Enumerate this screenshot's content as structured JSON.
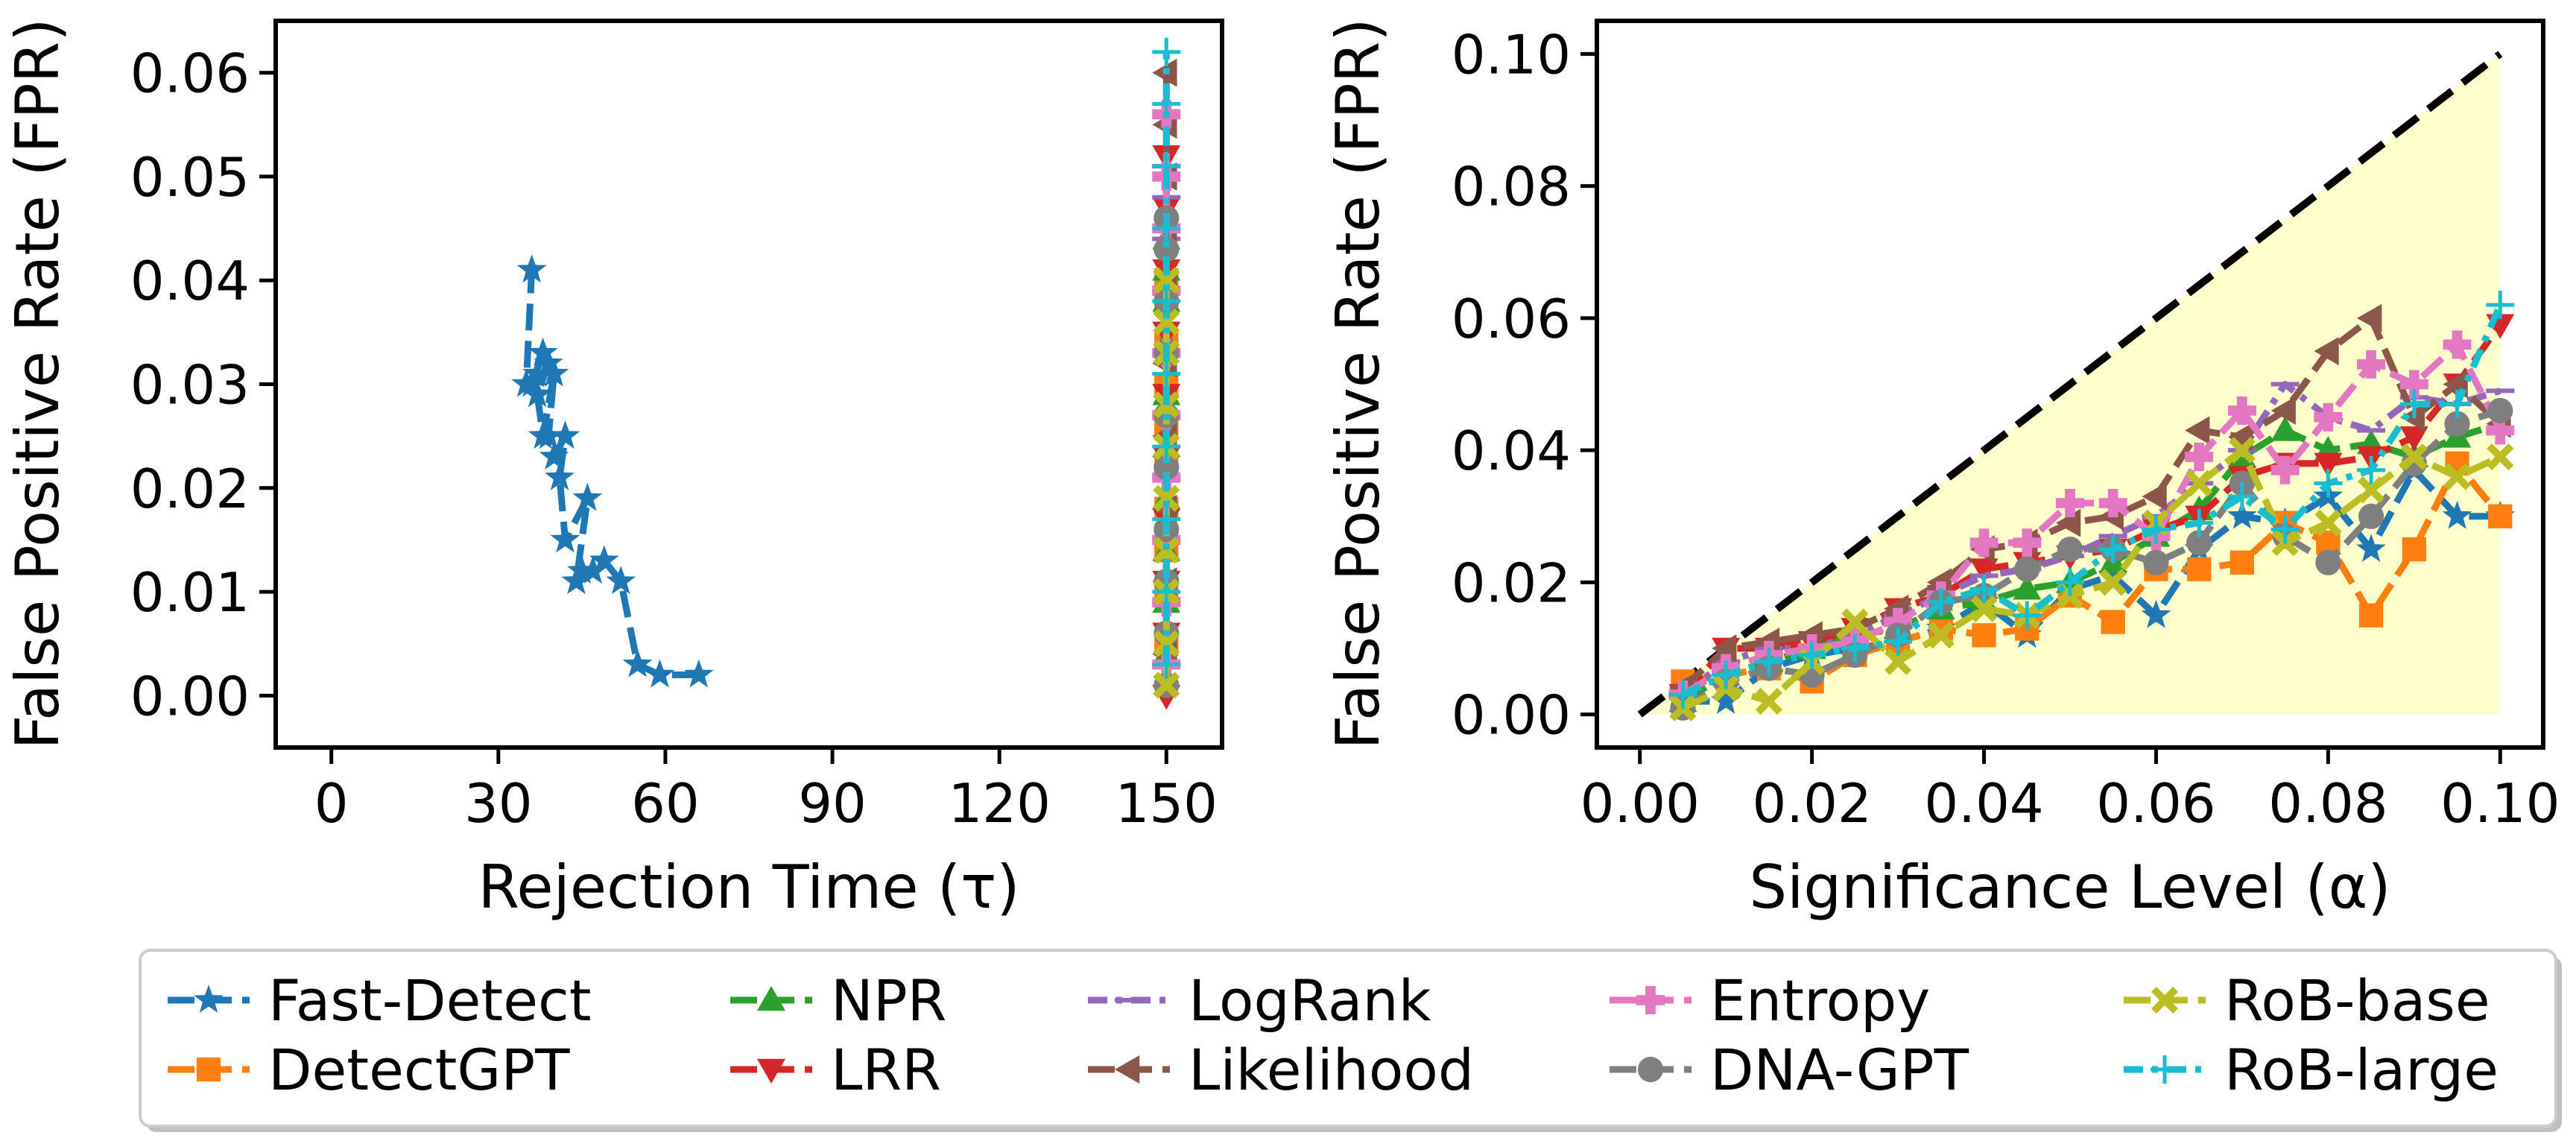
{
  "chart_data": [
    {
      "type": "line",
      "panel": "left",
      "xlabel": "Rejection Time (τ)",
      "ylabel": "False Positive Rate (FPR)",
      "xlim": [
        -10,
        160
      ],
      "ylim": [
        -0.005,
        0.065
      ],
      "xticks": [
        0,
        30,
        60,
        90,
        120,
        150
      ],
      "yticks": [
        0.0,
        0.01,
        0.02,
        0.03,
        0.04,
        0.05,
        0.06
      ],
      "xtick_labels": [
        "0",
        "30",
        "60",
        "90",
        "120",
        "150"
      ],
      "ytick_labels": [
        "0.00",
        "0.01",
        "0.02",
        "0.03",
        "0.04",
        "0.05",
        "0.06"
      ],
      "series": [
        {
          "name": "Fast-Detect",
          "color": "#1f77b4",
          "marker": "star",
          "x": [
            66,
            59,
            55,
            52,
            49,
            47,
            45,
            44,
            46,
            42,
            41,
            42,
            40,
            39,
            40,
            38,
            37,
            39,
            38,
            36,
            37,
            35,
            36
          ],
          "y": [
            0.002,
            0.002,
            0.003,
            0.011,
            0.013,
            0.012,
            0.012,
            0.011,
            0.019,
            0.015,
            0.021,
            0.025,
            0.023,
            0.025,
            0.031,
            0.025,
            0.029,
            0.032,
            0.033,
            0.03,
            0.031,
            0.03,
            0.041
          ]
        },
        {
          "name": "DetectGPT",
          "color": "#ff7f0e",
          "marker": "square",
          "x": [
            150,
            150,
            150,
            150,
            150,
            150,
            150,
            150,
            150,
            150
          ],
          "y": [
            0.005,
            0.01,
            0.014,
            0.018,
            0.022,
            0.026,
            0.03,
            0.034,
            0.038,
            0.04
          ]
        },
        {
          "name": "NPR",
          "color": "#2ca02c",
          "marker": "triangle-up",
          "x": [
            150,
            150,
            150,
            150,
            150,
            150,
            150,
            150,
            150,
            150
          ],
          "y": [
            0.004,
            0.009,
            0.014,
            0.019,
            0.024,
            0.029,
            0.034,
            0.038,
            0.041,
            0.044
          ]
        },
        {
          "name": "LRR",
          "color": "#d62728",
          "marker": "triangle-down",
          "x": [
            150,
            150,
            150,
            150,
            150,
            150,
            150,
            150,
            150,
            150
          ],
          "y": [
            0.0,
            0.006,
            0.011,
            0.017,
            0.023,
            0.029,
            0.035,
            0.041,
            0.047,
            0.052
          ]
        },
        {
          "name": "LogRank",
          "color": "#9467bd",
          "marker": "hline",
          "x": [
            150,
            150,
            150,
            150,
            150,
            150,
            150,
            150,
            150,
            150
          ],
          "y": [
            0.003,
            0.009,
            0.015,
            0.021,
            0.027,
            0.033,
            0.039,
            0.044,
            0.048,
            0.051
          ]
        },
        {
          "name": "Likelihood",
          "color": "#8c564b",
          "marker": "triangle-left",
          "x": [
            150,
            150,
            150,
            150,
            150,
            150,
            150,
            150,
            150,
            150
          ],
          "y": [
            0.004,
            0.011,
            0.018,
            0.025,
            0.032,
            0.039,
            0.045,
            0.05,
            0.055,
            0.06
          ]
        },
        {
          "name": "Entropy",
          "color": "#e377c2",
          "marker": "plus",
          "x": [
            150,
            150,
            150,
            150,
            150,
            150,
            150,
            150,
            150,
            150
          ],
          "y": [
            0.003,
            0.009,
            0.015,
            0.021,
            0.027,
            0.033,
            0.039,
            0.045,
            0.05,
            0.056
          ]
        },
        {
          "name": "DNA-GPT",
          "color": "#7f7f7f",
          "marker": "circle",
          "x": [
            150,
            150,
            150,
            150,
            150,
            150,
            150,
            150,
            150,
            150
          ],
          "y": [
            0.001,
            0.006,
            0.011,
            0.016,
            0.022,
            0.027,
            0.033,
            0.038,
            0.043,
            0.046
          ]
        },
        {
          "name": "RoB-base",
          "color": "#bcbd22",
          "marker": "x",
          "x": [
            150,
            150,
            150,
            150,
            150,
            150,
            150,
            150,
            150,
            150
          ],
          "y": [
            0.001,
            0.005,
            0.01,
            0.014,
            0.019,
            0.024,
            0.028,
            0.033,
            0.036,
            0.04
          ]
        },
        {
          "name": "RoB-large",
          "color": "#17becf",
          "marker": "thin-plus",
          "x": [
            150,
            150,
            150,
            150,
            150,
            150,
            150,
            150,
            150,
            150
          ],
          "y": [
            0.003,
            0.01,
            0.017,
            0.024,
            0.031,
            0.038,
            0.045,
            0.051,
            0.057,
            0.062
          ]
        }
      ]
    },
    {
      "type": "line",
      "panel": "right",
      "xlabel": "Significance Level (α)",
      "ylabel": "False Positive Rate (FPR)",
      "xlim": [
        -0.005,
        0.105
      ],
      "ylim": [
        -0.005,
        0.105
      ],
      "xticks": [
        0.0,
        0.02,
        0.04,
        0.06,
        0.08,
        0.1
      ],
      "yticks": [
        0.0,
        0.02,
        0.04,
        0.06,
        0.08,
        0.1
      ],
      "xtick_labels": [
        "0.00",
        "0.02",
        "0.04",
        "0.06",
        "0.08",
        "0.10"
      ],
      "ytick_labels": [
        "0.00",
        "0.02",
        "0.04",
        "0.06",
        "0.08",
        "0.10"
      ],
      "reference_line": {
        "x": [
          0.0,
          0.1
        ],
        "y": [
          0.0,
          0.1
        ],
        "style": "dashed",
        "color": "#000000"
      },
      "shaded_region": {
        "x": [
          0.0,
          0.1,
          0.1
        ],
        "y": [
          0.0,
          0.1,
          0.0
        ],
        "color": "#ffffcc"
      },
      "x": [
        0.005,
        0.01,
        0.015,
        0.02,
        0.025,
        0.03,
        0.035,
        0.04,
        0.045,
        0.05,
        0.055,
        0.06,
        0.065,
        0.07,
        0.075,
        0.08,
        0.085,
        0.09,
        0.095,
        0.1
      ],
      "series": [
        {
          "name": "Fast-Detect",
          "color": "#1f77b4",
          "marker": "star",
          "y": [
            0.002,
            0.002,
            0.007,
            0.009,
            0.01,
            0.011,
            0.013,
            0.017,
            0.012,
            0.019,
            0.021,
            0.015,
            0.025,
            0.03,
            0.029,
            0.033,
            0.025,
            0.037,
            0.03,
            0.03
          ]
        },
        {
          "name": "DetectGPT",
          "color": "#ff7f0e",
          "marker": "square",
          "y": [
            0.005,
            0.006,
            0.007,
            0.005,
            0.009,
            0.011,
            0.013,
            0.012,
            0.013,
            0.018,
            0.014,
            0.022,
            0.022,
            0.023,
            0.029,
            0.026,
            0.015,
            0.025,
            0.038,
            0.03
          ]
        },
        {
          "name": "NPR",
          "color": "#2ca02c",
          "marker": "triangle-up",
          "y": [
            0.002,
            0.006,
            0.008,
            0.01,
            0.012,
            0.013,
            0.016,
            0.017,
            0.019,
            0.02,
            0.023,
            0.027,
            0.031,
            0.039,
            0.043,
            0.04,
            0.041,
            0.039,
            0.042,
            0.044
          ]
        },
        {
          "name": "LRR",
          "color": "#d62728",
          "marker": "triangle-down",
          "y": [
            0.003,
            0.01,
            0.01,
            0.011,
            0.013,
            0.016,
            0.018,
            0.022,
            0.023,
            0.024,
            0.025,
            0.028,
            0.03,
            0.036,
            0.038,
            0.038,
            0.039,
            0.042,
            0.05,
            0.059
          ]
        },
        {
          "name": "LogRank",
          "color": "#9467bd",
          "marker": "hline",
          "y": [
            0.003,
            0.008,
            0.01,
            0.01,
            0.012,
            0.015,
            0.018,
            0.021,
            0.022,
            0.024,
            0.027,
            0.03,
            0.035,
            0.04,
            0.05,
            0.045,
            0.043,
            0.048,
            0.047,
            0.049
          ]
        },
        {
          "name": "Likelihood",
          "color": "#8c564b",
          "marker": "triangle-left",
          "y": [
            0.004,
            0.01,
            0.011,
            0.012,
            0.013,
            0.016,
            0.02,
            0.025,
            0.026,
            0.029,
            0.03,
            0.033,
            0.043,
            0.042,
            0.046,
            0.055,
            0.06,
            0.045,
            0.05,
            0.044
          ]
        },
        {
          "name": "Entropy",
          "color": "#e377c2",
          "marker": "plus",
          "y": [
            0.003,
            0.007,
            0.009,
            0.01,
            0.011,
            0.014,
            0.018,
            0.026,
            0.026,
            0.032,
            0.032,
            0.027,
            0.039,
            0.046,
            0.037,
            0.045,
            0.053,
            0.05,
            0.056,
            0.043
          ]
        },
        {
          "name": "DNA-GPT",
          "color": "#7f7f7f",
          "marker": "circle",
          "y": [
            0.001,
            0.005,
            0.007,
            0.006,
            0.009,
            0.012,
            0.017,
            0.018,
            0.022,
            0.025,
            0.025,
            0.023,
            0.026,
            0.035,
            0.027,
            0.023,
            0.03,
            0.038,
            0.044,
            0.046
          ]
        },
        {
          "name": "RoB-base",
          "color": "#bcbd22",
          "marker": "x",
          "y": [
            0.001,
            0.004,
            0.002,
            0.008,
            0.014,
            0.008,
            0.012,
            0.016,
            0.015,
            0.018,
            0.02,
            0.029,
            0.035,
            0.04,
            0.026,
            0.029,
            0.034,
            0.039,
            0.036,
            0.039
          ]
        },
        {
          "name": "RoB-large",
          "color": "#17becf",
          "marker": "thin-plus",
          "y": [
            0.003,
            0.006,
            0.008,
            0.009,
            0.01,
            0.011,
            0.017,
            0.019,
            0.015,
            0.02,
            0.025,
            0.028,
            0.029,
            0.033,
            0.028,
            0.035,
            0.037,
            0.047,
            0.047,
            0.062
          ]
        }
      ]
    }
  ],
  "legend": {
    "entries": [
      "Fast-Detect",
      "DetectGPT",
      "NPR",
      "LRR",
      "LogRank",
      "Likelihood",
      "Entropy",
      "DNA-GPT",
      "RoB-base",
      "RoB-large"
    ]
  }
}
